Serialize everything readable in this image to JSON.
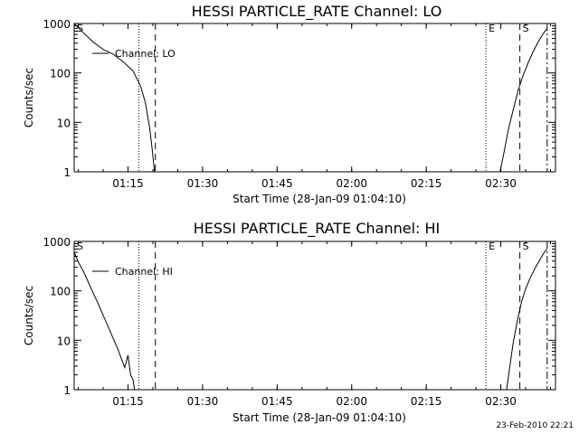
{
  "chart_data": [
    {
      "type": "line",
      "title": "HESSI PARTICLE_RATE Channel: LO",
      "xlabel": "Start Time (28-Jan-09 01:04:10)",
      "ylabel": "Counts/sec",
      "y_scale": "log",
      "ylim": [
        1,
        1000
      ],
      "xlim": [
        "01:04:10",
        "02:41:00"
      ],
      "x_ticks": [
        "01:15",
        "01:30",
        "01:45",
        "02:00",
        "02:15",
        "02:30"
      ],
      "y_ticks": [
        "1",
        "10",
        "100",
        "1000"
      ],
      "legend": {
        "label": "Channel: LO",
        "placement": "top-left"
      },
      "markers": [
        {
          "label": "S",
          "time": "01:04:10",
          "style": "dash-dot"
        },
        {
          "label": "",
          "time": "01:17:10",
          "style": "dotted"
        },
        {
          "label": "",
          "time": "01:20:30",
          "style": "dashed"
        },
        {
          "label": "E",
          "time": "02:27:00",
          "style": "dotted"
        },
        {
          "label": "S",
          "time": "02:33:50",
          "style": "dashed"
        },
        {
          "label": "",
          "time": "02:39:20",
          "style": "dash-dot"
        }
      ],
      "series": [
        {
          "x": [
            "01:04:10",
            "01:06:00",
            "01:08:00",
            "01:10:00",
            "01:12:00",
            "01:14:00",
            "01:16:00",
            "01:17:30",
            "01:18:30",
            "01:19:20",
            "01:19:50",
            "01:20:20"
          ],
          "values": [
            1000,
            650,
            420,
            300,
            240,
            170,
            110,
            55,
            25,
            8,
            3,
            1
          ]
        },
        {
          "x": [
            "02:29:50",
            "02:30:40",
            "02:31:30",
            "02:32:30",
            "02:33:30",
            "02:34:30",
            "02:35:30",
            "02:36:30",
            "02:37:30",
            "02:38:30",
            "02:39:20"
          ],
          "values": [
            1,
            2.5,
            7,
            18,
            45,
            90,
            160,
            270,
            420,
            620,
            780
          ]
        }
      ]
    },
    {
      "type": "line",
      "title": "HESSI PARTICLE_RATE Channel: HI",
      "xlabel": "Start Time (28-Jan-09 01:04:10)",
      "ylabel": "Counts/sec",
      "y_scale": "log",
      "ylim": [
        1,
        1000
      ],
      "xlim": [
        "01:04:10",
        "02:41:00"
      ],
      "x_ticks": [
        "01:15",
        "01:30",
        "01:45",
        "02:00",
        "02:15",
        "02:30"
      ],
      "y_ticks": [
        "1",
        "10",
        "100",
        "1000"
      ],
      "legend": {
        "label": "Channel: HI",
        "placement": "top-left"
      },
      "markers": [
        {
          "label": "S",
          "time": "01:04:10",
          "style": "dash-dot"
        },
        {
          "label": "",
          "time": "01:17:10",
          "style": "dotted"
        },
        {
          "label": "",
          "time": "01:20:30",
          "style": "dashed"
        },
        {
          "label": "E",
          "time": "02:27:00",
          "style": "dotted"
        },
        {
          "label": "S",
          "time": "02:33:50",
          "style": "dashed"
        },
        {
          "label": "",
          "time": "02:39:20",
          "style": "dash-dot"
        }
      ],
      "series": [
        {
          "x": [
            "01:04:10",
            "01:05:00",
            "01:06:00",
            "01:07:00",
            "01:08:00",
            "01:09:00",
            "01:10:00",
            "01:11:00",
            "01:12:00",
            "01:13:00",
            "01:13:40",
            "01:14:20",
            "01:15:00",
            "01:15:30",
            "01:16:00",
            "01:16:20"
          ],
          "values": [
            600,
            380,
            250,
            150,
            90,
            55,
            32,
            19,
            11,
            6.5,
            4.2,
            2.8,
            5,
            2,
            1.6,
            1
          ]
        },
        {
          "x": [
            "02:31:10",
            "02:31:50",
            "02:32:30",
            "02:33:20",
            "02:34:10",
            "02:35:00",
            "02:36:00",
            "02:37:00",
            "02:38:00",
            "02:38:50",
            "02:39:20"
          ],
          "values": [
            1,
            3,
            9,
            25,
            60,
            110,
            190,
            300,
            450,
            620,
            700
          ]
        }
      ]
    }
  ],
  "footer": {
    "timestamp": "23-Feb-2010 22:21"
  }
}
